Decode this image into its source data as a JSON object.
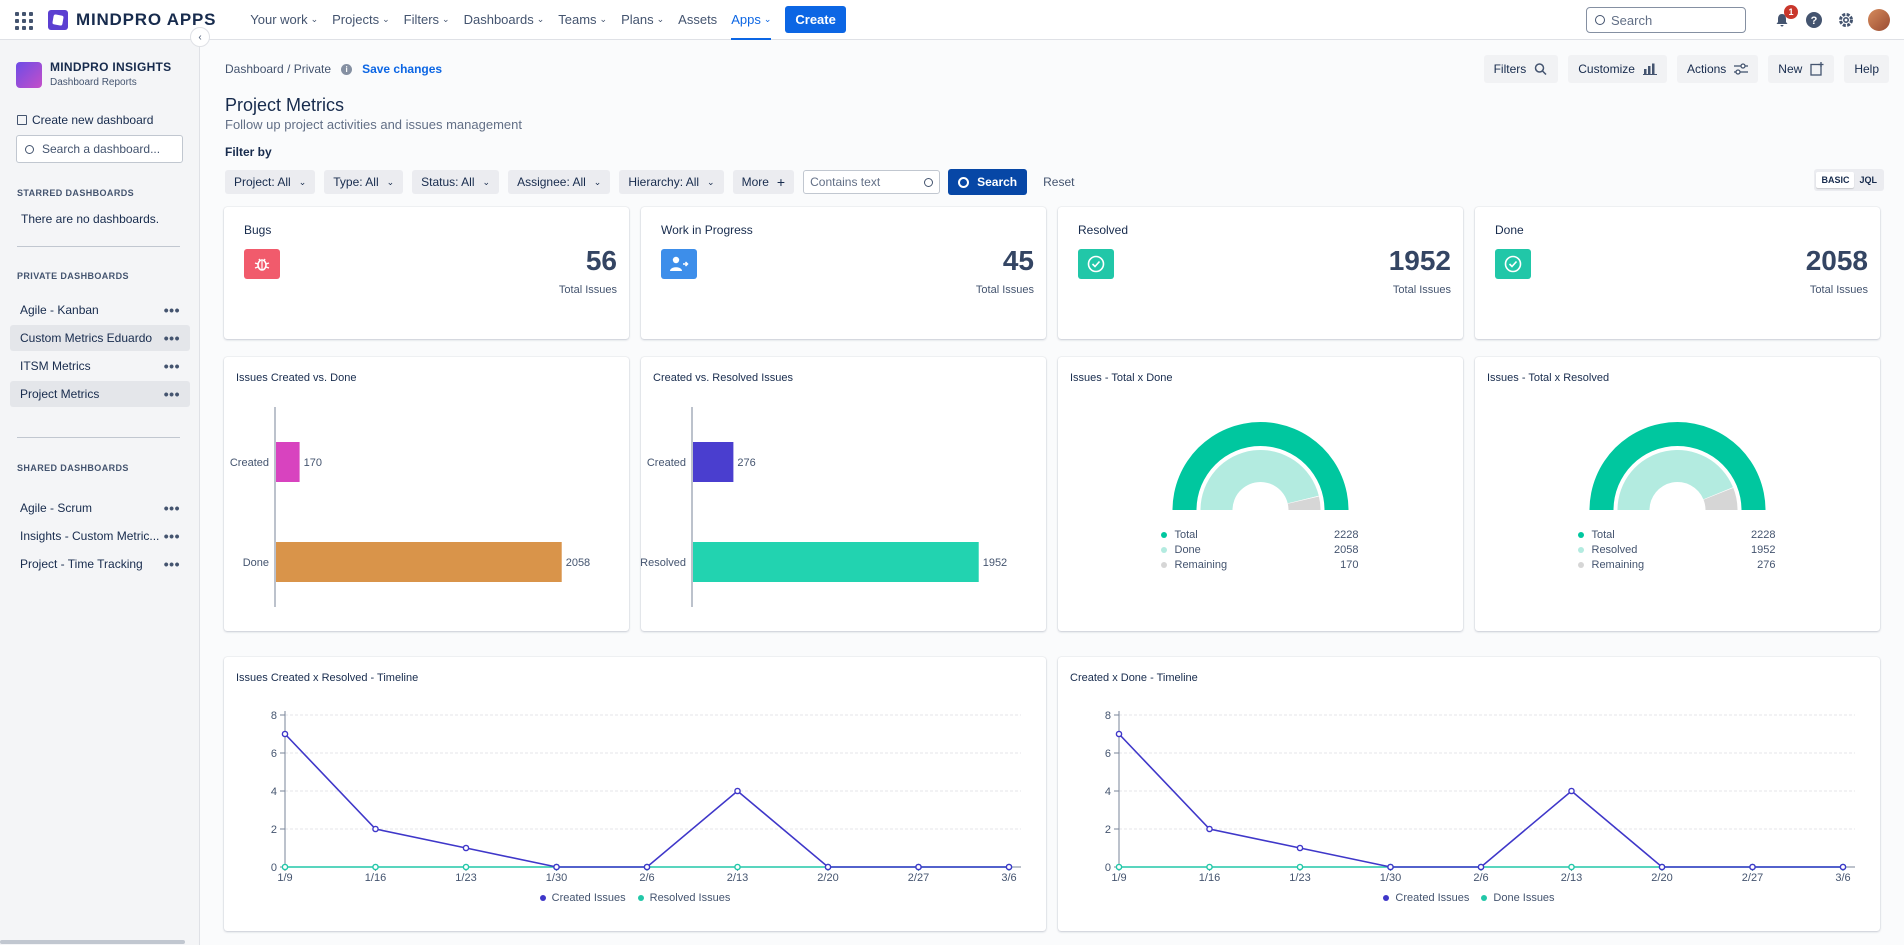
{
  "topnav": {
    "brand": "MINDPRO APPS",
    "items": [
      {
        "label": "Your work",
        "chevron": true
      },
      {
        "label": "Projects",
        "chevron": true
      },
      {
        "label": "Filters",
        "chevron": true
      },
      {
        "label": "Dashboards",
        "chevron": true
      },
      {
        "label": "Teams",
        "chevron": true
      },
      {
        "label": "Plans",
        "chevron": true
      },
      {
        "label": "Assets",
        "chevron": false
      },
      {
        "label": "Apps",
        "chevron": true,
        "active": true
      }
    ],
    "create_label": "Create",
    "search_placeholder": "Search",
    "notification_count": "1"
  },
  "sidebar": {
    "title": "MINDPRO INSIGHTS",
    "subtitle": "Dashboard Reports",
    "create_label": "Create new dashboard",
    "search_placeholder": "Search a dashboard...",
    "starred_heading": "STARRED DASHBOARDS",
    "starred_empty": "There are no dashboards.",
    "private_heading": "PRIVATE DASHBOARDS",
    "private_items": [
      "Agile - Kanban",
      "Custom Metrics Eduardo",
      "ITSM Metrics",
      "Project Metrics"
    ],
    "shared_heading": "SHARED DASHBOARDS",
    "shared_items": [
      "Agile - Scrum",
      "Insights - Custom Metric...",
      "Project - Time Tracking"
    ]
  },
  "header": {
    "breadcrumb": "Dashboard / Private",
    "save_label": "Save changes",
    "actions": [
      "Filters",
      "Customize",
      "Actions",
      "New",
      "Help"
    ],
    "title": "Project Metrics",
    "subtitle": "Follow up project activities and issues management"
  },
  "filters": {
    "heading": "Filter by",
    "buttons": [
      "Project: All",
      "Type: All",
      "Status: All",
      "Assignee: All",
      "Hierarchy: All"
    ],
    "more_label": "More",
    "text_placeholder": "Contains text",
    "search_label": "Search",
    "reset_label": "Reset",
    "toggle": [
      "BASIC",
      "JQL"
    ]
  },
  "kpis": [
    {
      "title": "Bugs",
      "value": "56",
      "label": "Total Issues",
      "icon": "bug-icon",
      "color": "#f15b6c"
    },
    {
      "title": "Work in Progress",
      "value": "45",
      "label": "Total Issues",
      "icon": "user-progress-icon",
      "color": "#3d8eea"
    },
    {
      "title": "Resolved",
      "value": "1952",
      "label": "Total Issues",
      "icon": "check-circle-icon",
      "color": "#21c7a8"
    },
    {
      "title": "Done",
      "value": "2058",
      "label": "Total Issues",
      "icon": "check-circle-icon",
      "color": "#21c7a8"
    }
  ],
  "chart_data": [
    {
      "type": "bar",
      "title": "Issues Created vs. Done",
      "categories": [
        "Created",
        "Done"
      ],
      "values": [
        170,
        2058
      ],
      "colors": [
        "#d843bf",
        "#d9944a"
      ]
    },
    {
      "type": "bar",
      "title": "Created vs. Resolved Issues",
      "categories": [
        "Created",
        "Resolved"
      ],
      "values": [
        276,
        1952
      ],
      "colors": [
        "#4a3ecf",
        "#22d3b0"
      ]
    },
    {
      "type": "pie",
      "title": "Issues - Total x Done",
      "labels": [
        "Total",
        "Done",
        "Remaining"
      ],
      "values": [
        2228,
        2058,
        170
      ],
      "colors": [
        "#00c79f",
        "#b3ebe0",
        "#d6d6d6"
      ]
    },
    {
      "type": "pie",
      "title": "Issues - Total x Resolved",
      "labels": [
        "Total",
        "Resolved",
        "Remaining"
      ],
      "values": [
        2228,
        1952,
        276
      ],
      "colors": [
        "#00c79f",
        "#b3ebe0",
        "#d6d6d6"
      ]
    },
    {
      "type": "line",
      "title": "Issues Created x Resolved - Timeline",
      "x": [
        "1/9",
        "1/16",
        "1/23",
        "1/30",
        "2/6",
        "2/13",
        "2/20",
        "2/27",
        "3/6"
      ],
      "ylim": [
        0,
        8
      ],
      "yticks": [
        0,
        2,
        4,
        6,
        8
      ],
      "series": [
        {
          "name": "Created Issues",
          "values": [
            7,
            2,
            1,
            0,
            0,
            4,
            0,
            0,
            0
          ],
          "color": "#3f37c9"
        },
        {
          "name": "Resolved Issues",
          "values": [
            0,
            0,
            0,
            0,
            0,
            0,
            0,
            0,
            0
          ],
          "color": "#22c7a8"
        }
      ]
    },
    {
      "type": "line",
      "title": "Created x Done - Timeline",
      "x": [
        "1/9",
        "1/16",
        "1/23",
        "1/30",
        "2/6",
        "2/13",
        "2/20",
        "2/27",
        "3/6"
      ],
      "ylim": [
        0,
        8
      ],
      "yticks": [
        0,
        2,
        4,
        6,
        8
      ],
      "series": [
        {
          "name": "Created Issues",
          "values": [
            7,
            2,
            1,
            0,
            0,
            4,
            0,
            0,
            0
          ],
          "color": "#3f37c9"
        },
        {
          "name": "Done Issues",
          "values": [
            0,
            0,
            0,
            0,
            0,
            0,
            0,
            0,
            0
          ],
          "color": "#22c7a8"
        }
      ]
    }
  ]
}
